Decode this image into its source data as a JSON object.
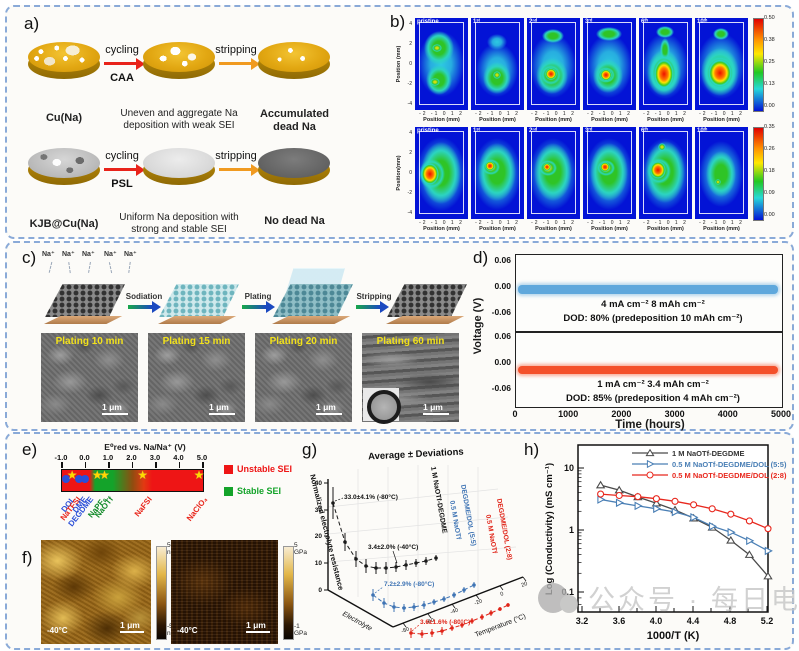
{
  "panel_labels": {
    "a": "a)",
    "b": "b)",
    "c": "c)",
    "d": "d)",
    "e": "e)",
    "f": "f)",
    "g": "g)",
    "h": "h)"
  },
  "panel_a": {
    "rows": [
      {
        "disk1_label": "Cu(Na)",
        "arrow1_top": "cycling",
        "arrow1_bottom": "CAA",
        "mid_caption_1": "Uneven and aggregate Na",
        "mid_caption_2": "deposition with weak SEI",
        "arrow2_label": "stripping",
        "end_caption_1": "Accumulated",
        "end_caption_2": "dead Na"
      },
      {
        "disk1_label": "KJB@Cu(Na)",
        "arrow1_top": "cycling",
        "arrow1_bottom": "PSL",
        "mid_caption_1": "Uniform Na deposition with",
        "mid_caption_2": "strong and stable SEI",
        "arrow2_label": "stripping",
        "end_caption_1": "No dead Na",
        "end_caption_2": ""
      }
    ]
  },
  "panel_b": {
    "xlabel": "Position (mm)",
    "xticks": "-2 -1 0 1 2",
    "ylabel_top": "Position (mm)",
    "ylabel_bottom": "Position(mm)",
    "yticks": [
      "4",
      "2",
      "0",
      "-2",
      "-4"
    ],
    "colorbar_top": [
      "0.50",
      "0.38",
      "0.25",
      "0.13",
      "0.00"
    ],
    "colorbar_bottom": [
      "0.35",
      "0.26",
      "0.18",
      "0.09",
      "0.00"
    ],
    "maps_top": [
      {
        "label": "pristine",
        "blobs": [
          [
            22,
            30,
            5,
            4,
            "yellow"
          ],
          [
            20,
            64,
            5,
            4,
            "yellow"
          ],
          [
            24,
            30,
            15,
            17,
            "green"
          ],
          [
            24,
            62,
            13,
            15,
            "green"
          ],
          [
            26,
            46,
            23,
            33,
            "cyan"
          ]
        ]
      },
      {
        "label": "1ˢᵗ",
        "blobs": [
          [
            26,
            57,
            4,
            4,
            "yellow"
          ],
          [
            26,
            60,
            14,
            16,
            "green"
          ],
          [
            26,
            24,
            10,
            8,
            "cyan"
          ],
          [
            26,
            52,
            21,
            27,
            "cyan"
          ]
        ]
      },
      {
        "label": "2ⁿᵈ",
        "blobs": [
          [
            24,
            56,
            6,
            6,
            "red"
          ],
          [
            24,
            57,
            10,
            10,
            "yellow"
          ],
          [
            26,
            18,
            11,
            7,
            "green"
          ],
          [
            25,
            58,
            16,
            18,
            "green"
          ],
          [
            26,
            48,
            23,
            32,
            "cyan"
          ]
        ]
      },
      {
        "label": "3ʳᵈ",
        "blobs": [
          [
            23,
            57,
            6,
            6,
            "red"
          ],
          [
            23,
            57,
            9,
            8,
            "yellow"
          ],
          [
            26,
            16,
            13,
            7,
            "green"
          ],
          [
            25,
            58,
            15,
            17,
            "green"
          ],
          [
            26,
            48,
            23,
            32,
            "cyan"
          ]
        ]
      },
      {
        "label": "6ᵗʰ",
        "blobs": [
          [
            25,
            56,
            10,
            15,
            "red"
          ],
          [
            25,
            55,
            14,
            19,
            "yellow"
          ],
          [
            26,
            14,
            9,
            6,
            "green"
          ],
          [
            26,
            32,
            5,
            12,
            "green"
          ],
          [
            25,
            55,
            17,
            23,
            "green"
          ],
          [
            26,
            48,
            23,
            33,
            "cyan"
          ]
        ]
      },
      {
        "label": "10ᵗʰ",
        "blobs": [
          [
            25,
            55,
            12,
            14,
            "red"
          ],
          [
            25,
            55,
            16,
            18,
            "yellow"
          ],
          [
            26,
            16,
            8,
            6,
            "green"
          ],
          [
            25,
            54,
            19,
            24,
            "green"
          ],
          [
            26,
            48,
            24,
            33,
            "cyan"
          ]
        ]
      }
    ],
    "maps_bottom": [
      {
        "label": "pristine",
        "blobs": [
          [
            15,
            47,
            9,
            11,
            "red"
          ],
          [
            17,
            47,
            13,
            15,
            "yellow"
          ],
          [
            26,
            46,
            20,
            31,
            "green"
          ],
          [
            26,
            47,
            25,
            37,
            "cyan"
          ]
        ]
      },
      {
        "label": "1ˢᵗ",
        "blobs": [
          [
            19,
            39,
            5,
            5,
            "red"
          ],
          [
            20,
            40,
            9,
            8,
            "yellow"
          ],
          [
            26,
            45,
            19,
            29,
            "green"
          ],
          [
            26,
            47,
            24,
            36,
            "cyan"
          ]
        ]
      },
      {
        "label": "2ⁿᵈ",
        "blobs": [
          [
            20,
            40,
            4,
            4,
            "red"
          ],
          [
            21,
            41,
            9,
            8,
            "yellow"
          ],
          [
            26,
            45,
            19,
            29,
            "green"
          ],
          [
            26,
            47,
            24,
            36,
            "cyan"
          ]
        ]
      },
      {
        "label": "3ʳᵈ",
        "blobs": [
          [
            22,
            40,
            5,
            5,
            "red"
          ],
          [
            23,
            41,
            9,
            8,
            "yellow"
          ],
          [
            26,
            45,
            19,
            29,
            "green"
          ],
          [
            26,
            47,
            24,
            36,
            "cyan"
          ]
        ]
      },
      {
        "label": "6ᵗʰ",
        "blobs": [
          [
            19,
            43,
            8,
            9,
            "red"
          ],
          [
            20,
            44,
            12,
            13,
            "yellow"
          ],
          [
            23,
            20,
            4,
            4,
            "yellow"
          ],
          [
            26,
            45,
            20,
            31,
            "green"
          ],
          [
            26,
            47,
            24,
            36,
            "cyan"
          ]
        ]
      },
      {
        "label": "10ᵗʰ",
        "blobs": [
          [
            23,
            55,
            3,
            3,
            "yellow"
          ],
          [
            26,
            47,
            15,
            23,
            "green"
          ],
          [
            26,
            47,
            22,
            33,
            "cyan"
          ]
        ]
      }
    ]
  },
  "panel_c": {
    "ion_label": "Na⁺",
    "arrows": [
      "Sodiation",
      "Plating",
      "Stripping"
    ],
    "sem_labels": [
      "Plating 10 min",
      "Plating 15 min",
      "Plating 20 min",
      "Plating 60 min"
    ],
    "scale_bar": "1 μm"
  },
  "panel_d": {
    "ylabel": "Voltage (V)",
    "xlabel": "Time (hours)",
    "yticks": [
      "0.06",
      "0.00",
      "-0.06"
    ],
    "xticks": [
      "0",
      "1000",
      "2000",
      "3000",
      "4000",
      "5000"
    ],
    "top": {
      "line1": "4 mA cm⁻² 8 mAh cm⁻²",
      "line2": "DOD: 80% (predeposition 10 mAh cm⁻²)"
    },
    "bottom": {
      "line1": "1 mA cm⁻² 3.4 mAh cm⁻²",
      "line2": "DOD: 85% (predeposition 4 mAh cm⁻²)"
    }
  },
  "panel_e": {
    "axis_title": "E⁰red vs. Na/Na⁺ (V)",
    "ticks": [
      "-1.0",
      "0.0",
      "1.0",
      "2.0",
      "3.0",
      "4.0",
      "5.0"
    ],
    "legend": [
      {
        "label": "Unstable SEI",
        "color": "#ee1515"
      },
      {
        "label": "Stable SEI",
        "color": "#14a32a"
      }
    ]
  },
  "panel_f": {
    "images": [
      {
        "temp": "-40°C",
        "scale": "1 μm",
        "cb_top": [
          "50",
          "nm"
        ],
        "cb_bottom": [
          "-50",
          "nm"
        ]
      },
      {
        "temp": "-40°C",
        "scale": "1 μm",
        "cb_top": [
          "5",
          "GPa"
        ],
        "cb_bottom": [
          "-1",
          "GPa"
        ]
      }
    ]
  },
  "panel_g": {
    "title": "Average ± Deviations",
    "zlabel": "Normalized electrolyte resistance",
    "zticks": [
      "0",
      "10",
      "20",
      "30",
      "40"
    ],
    "xlabel": "Electrolyte",
    "ylabel": "Temperature (°C)",
    "tticks": [
      "-80",
      "-60",
      "-40",
      "-20",
      "0",
      "20"
    ],
    "ann1": "33.0±4.1% (-80°C)",
    "ann2": "3.4±2.0% (-40°C)",
    "ann3": "7.2±2.9% (-80°C)",
    "ann4": "3.6±1.6% (-80°C)",
    "s1_label": "1 M NaOTf-DEGDME",
    "s2_label_1": "0.5 M NaOTf",
    "s2_label_2": "DEGDME/DOL (5:5)",
    "s3_label_1": "0.5 M NaOTf",
    "s3_label_2": "DEGDME/DOL (2:8)"
  },
  "panel_h": {
    "ylabel": "Log (Conductivity) (mS cm⁻¹)",
    "xlabel": "1000/T (K)",
    "yticks": [
      "10",
      "1",
      "0.1"
    ],
    "xticks": [
      "3.2",
      "3.6",
      "4.0",
      "4.4",
      "4.8",
      "5.2"
    ],
    "legend": [
      "1 M NaOTf-DEGDME",
      "0.5 M NaOTf-DEGDME/DOL (5:5)",
      "0.5 M NaOTf-DEGDME/DOL (2:8)"
    ]
  },
  "watermark": {
    "text": "公众号 · 每日电池"
  },
  "chart_data": [
    {
      "panel": "b",
      "type": "heatmap",
      "xlabel": "Position (mm)",
      "ylabel": "Position (mm)",
      "rows": [
        {
          "position": "top",
          "cycles": [
            "pristine",
            "1st",
            "2nd",
            "3rd",
            "6th",
            "10th"
          ],
          "colorbar_ticks": [
            0.5,
            0.38,
            0.25,
            0.13,
            0.0
          ],
          "x_range_mm": [
            -2,
            2
          ],
          "note": "Na intensity hot spot grows with cycling (CAA)"
        },
        {
          "position": "bottom",
          "cycles": [
            "pristine",
            "1st",
            "2nd",
            "3rd",
            "6th",
            "10th"
          ],
          "colorbar_ticks": [
            0.35,
            0.26,
            0.18,
            0.09,
            0.0
          ],
          "x_range_mm": [
            -2,
            2
          ],
          "note": "Na intensity hot spot shrinks by 10th cycle (PSL)"
        }
      ]
    },
    {
      "panel": "d",
      "type": "line",
      "xlabel": "Time (hours)",
      "ylabel": "Voltage (V)",
      "xlim": [
        0,
        5000
      ],
      "xticks": [
        0,
        1000,
        2000,
        3000,
        4000,
        5000
      ],
      "yticks": [
        0.06,
        0.0,
        -0.06
      ],
      "subplots": [
        {
          "color": "#5fa8dc",
          "annotation": [
            "4 mA cm⁻² 8 mAh cm⁻²",
            "DOD: 80% (predeposition 10 mAh cm⁻²)"
          ],
          "behavior": "flat noisy voltage band at ~0.00 V over 0-5000 h"
        },
        {
          "color": "#f4502a",
          "annotation": [
            "1 mA cm⁻² 3.4 mAh cm⁻²",
            "DOD: 85% (predeposition 4 mAh cm⁻²)"
          ],
          "behavior": "flat noisy voltage band at ~0.00 V over 0-5000 h"
        }
      ]
    },
    {
      "panel": "e",
      "type": "scatter",
      "axis_title": "E⁰red vs. Na/Na⁺ (V)",
      "xlim": [
        -1.0,
        5.0
      ],
      "xticks": [
        -1.0,
        0.0,
        1.0,
        2.0,
        3.0,
        4.0,
        5.0
      ],
      "stable_zone_V": [
        0.3,
        1.3
      ],
      "items": [
        {
          "name": "DOL",
          "x": -0.77,
          "marker": "circle",
          "color": "#2b4fd8"
        },
        {
          "name": "NaTFSI",
          "x": -0.5,
          "marker": "star",
          "color": "#e8251a"
        },
        {
          "name": "DME",
          "x": -0.25,
          "marker": "circle",
          "color": "#2b4fd8"
        },
        {
          "name": "DEGDME",
          "x": 0.03,
          "marker": "circle",
          "color": "#2b4fd8"
        },
        {
          "name": "NaPF₆",
          "x": 0.57,
          "marker": "star",
          "color": "#108a28"
        },
        {
          "name": "NaOTf",
          "x": 0.88,
          "marker": "star",
          "color": "#108a28"
        },
        {
          "name": "NaFSI",
          "x": 2.5,
          "marker": "star",
          "color": "#e8251a"
        },
        {
          "name": "NaClO₄",
          "x": 4.9,
          "marker": "star",
          "color": "#e8251a"
        }
      ]
    },
    {
      "panel": "g",
      "type": "3d-line",
      "title": "Average ± Deviations",
      "zlabel": "Normalized electrolyte resistance",
      "zticks": [
        0,
        10,
        20,
        30,
        40
      ],
      "xlabel": "Electrolyte",
      "ylabel": "Temperature (°C)",
      "temps": [
        20,
        0,
        -20,
        -40,
        -60,
        -80
      ],
      "series": [
        {
          "name": "1 M NaOTf-DEGDME",
          "color": "#1a1a1a",
          "values_vs_temp": [
            1.0,
            1.3,
            2.0,
            3.4,
            12.0,
            33.0
          ],
          "annotations": [
            "33.0±4.1% (-80°C)",
            "3.4±2.0% (-40°C)"
          ]
        },
        {
          "name": "0.5 M NaOTf DEGDME/DOL (5:5)",
          "color": "#3f74b4",
          "values_vs_temp": [
            1.0,
            1.2,
            1.6,
            2.4,
            4.0,
            7.2
          ],
          "annotations": [
            "7.2±2.9% (-80°C)"
          ]
        },
        {
          "name": "0.5 M NaOTf DEGDME/DOL (2:8)",
          "color": "#e02418",
          "values_vs_temp": [
            1.0,
            1.1,
            1.4,
            1.9,
            2.6,
            3.6
          ],
          "annotations": [
            "3.6±1.6% (-80°C)"
          ]
        }
      ]
    },
    {
      "panel": "h",
      "type": "line",
      "xlabel": "1000/T (K)",
      "ylabel": "Log (Conductivity) (mS cm⁻¹)",
      "xticks": [
        3.2,
        3.6,
        4.0,
        4.4,
        4.8,
        5.2
      ],
      "yticks_log": [
        0.1,
        1,
        10
      ],
      "x": [
        3.4,
        3.6,
        3.8,
        4.0,
        4.2,
        4.4,
        4.6,
        4.8,
        5.0,
        5.2
      ],
      "series": [
        {
          "name": "1 M NaOTf-DEGDME",
          "color": "#4a4a4a",
          "marker": "triangle-up",
          "values": [
            5.3,
            4.4,
            3.4,
            2.7,
            2.1,
            1.55,
            1.1,
            0.68,
            0.4,
            0.18
          ]
        },
        {
          "name": "0.5 M NaOTf-DEGDME/DOL (5:5)",
          "color": "#4a7fb5",
          "marker": "triangle-right",
          "values": [
            3.1,
            2.75,
            2.45,
            2.2,
            1.95,
            1.6,
            1.15,
            0.92,
            0.67,
            0.46
          ]
        },
        {
          "name": "0.5 M NaOTf-DEGDME/DOL (2:8)",
          "color": "#e8281e",
          "marker": "circle",
          "values": [
            3.8,
            3.6,
            3.45,
            3.2,
            2.9,
            2.55,
            2.2,
            1.8,
            1.4,
            1.05
          ]
        }
      ]
    }
  ]
}
